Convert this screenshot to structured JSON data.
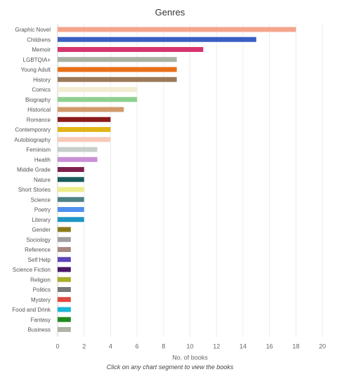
{
  "chart_data": {
    "type": "bar",
    "orientation": "horizontal",
    "title": "Genres",
    "xlabel": "No. of books",
    "ylabel": "",
    "xlim": [
      0,
      20
    ],
    "x_ticks": [
      0,
      2,
      4,
      6,
      8,
      10,
      12,
      14,
      16,
      18,
      20
    ],
    "grid": "vertical",
    "categories": [
      "Graphic Novel",
      "Childrens",
      "Memoir",
      "LGBTQIA+",
      "Young Adult",
      "History",
      "Comics",
      "Biography",
      "Historical",
      "Romance",
      "Contemporary",
      "Autobiography",
      "Feminism",
      "Health",
      "Middle Grade",
      "Nature",
      "Short Stories",
      "Science",
      "Poetry",
      "Literary",
      "Gender",
      "Sociology",
      "Reference",
      "Self Help",
      "Science Fiction",
      "Religion",
      "Politics",
      "Mystery",
      "Food and Drink",
      "Fantasy",
      "Business"
    ],
    "values": [
      18,
      15,
      11,
      9,
      9,
      9,
      6,
      6,
      5,
      4,
      4,
      4,
      3,
      3,
      2,
      2,
      2,
      2,
      2,
      2,
      1,
      1,
      1,
      1,
      1,
      1,
      1,
      1,
      1,
      1,
      1
    ],
    "colors": [
      "#f4a58b",
      "#3a5fc4",
      "#d6356f",
      "#a9b3a3",
      "#e8701a",
      "#9b7a5a",
      "#f3ecd2",
      "#8fd08f",
      "#d19a6a",
      "#8b1a1a",
      "#e0b516",
      "#f8c9b8",
      "#c7cfca",
      "#c98fd6",
      "#7e1f4e",
      "#1b5c5c",
      "#ecec8a",
      "#4e8287",
      "#4f8ff0",
      "#1f95c6",
      "#8a7a1a",
      "#a0a0a0",
      "#a88880",
      "#5d45b8",
      "#4b1766",
      "#a8ae2a",
      "#7a7a7a",
      "#e0483f",
      "#1cb6d6",
      "#1f8c1f",
      "#b0b4a8"
    ]
  },
  "footer_note": "Click on any chart segment to view the books"
}
